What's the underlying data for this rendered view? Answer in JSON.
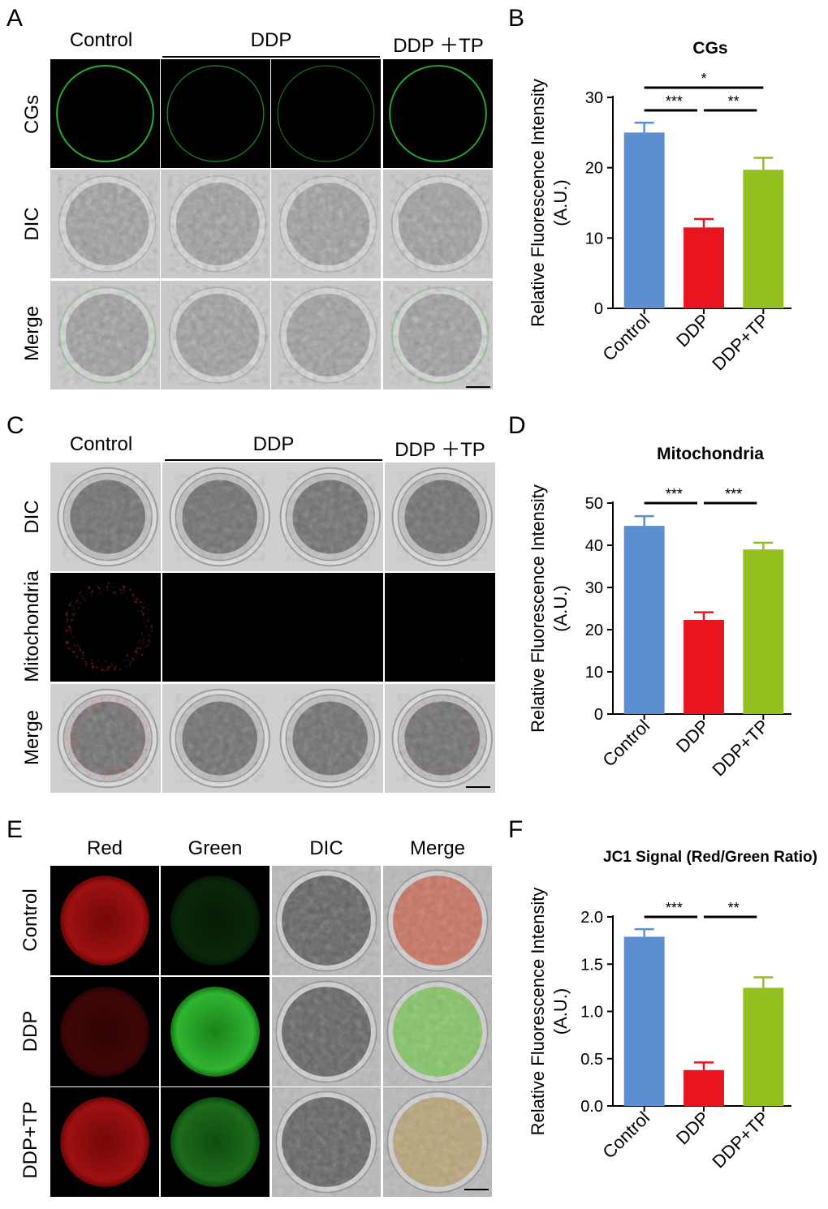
{
  "panels": {
    "A": {
      "letter": "A",
      "columns": [
        "Control",
        "DDP",
        "DDP ＋TP"
      ],
      "rows": [
        "CGs",
        "DIC",
        "Merge"
      ]
    },
    "C": {
      "letter": "C",
      "columns": [
        "Control",
        "DDP",
        "DDP ＋TP"
      ],
      "rows": [
        "DIC",
        "Mitochondria",
        "Merge"
      ]
    },
    "E": {
      "letter": "E",
      "columns": [
        "Red",
        "Green",
        "DIC",
        "Merge"
      ],
      "rows": [
        "Control",
        "DDP",
        "DDP+TP"
      ]
    },
    "B": {
      "letter": "B"
    },
    "D": {
      "letter": "D"
    },
    "F": {
      "letter": "F"
    }
  },
  "colors": {
    "control": "#5b8fcf",
    "ddp": "#e8141e",
    "ddp_tp": "#93c01f"
  },
  "chart_data": [
    {
      "type": "bar",
      "title": "CGs",
      "categories": [
        "Control",
        "DDP",
        "DDP+TP"
      ],
      "values": [
        25.0,
        11.5,
        19.7
      ],
      "errors": [
        1.4,
        1.2,
        1.7
      ],
      "ylabel": "Relative Fluorescence Intensity\n(A.U.)",
      "ylim": [
        0,
        30
      ],
      "yticks": [
        0,
        10,
        20,
        30
      ],
      "significance": [
        {
          "from": 0,
          "to": 1,
          "label": "***"
        },
        {
          "from": 1,
          "to": 2,
          "label": "**"
        },
        {
          "from": 0,
          "to": 2,
          "label": "*"
        }
      ]
    },
    {
      "type": "bar",
      "title": "Mitochondria",
      "categories": [
        "Control",
        "DDP",
        "DDP+TP"
      ],
      "values": [
        44.6,
        22.3,
        39.0
      ],
      "errors": [
        2.3,
        1.8,
        1.6
      ],
      "ylabel": "Relative Fluorescence Intensity\n(A.U.)",
      "ylim": [
        0,
        50
      ],
      "yticks": [
        0,
        10,
        20,
        30,
        40,
        50
      ],
      "significance": [
        {
          "from": 0,
          "to": 1,
          "label": "***"
        },
        {
          "from": 1,
          "to": 2,
          "label": "***"
        }
      ]
    },
    {
      "type": "bar",
      "title": "JC1 Signal (Red/Green Ratio)",
      "categories": [
        "Control",
        "DDP",
        "DDP+TP"
      ],
      "values": [
        1.79,
        0.38,
        1.25
      ],
      "errors": [
        0.08,
        0.08,
        0.11
      ],
      "ylabel": "Relative Fluorescence Intensity\n(A.U.)",
      "ylim": [
        0,
        2.0
      ],
      "yticks": [
        "0.0",
        "0.5",
        "1.0",
        "1.5",
        "2.0"
      ],
      "significance": [
        {
          "from": 0,
          "to": 1,
          "label": "***"
        },
        {
          "from": 1,
          "to": 2,
          "label": "**"
        }
      ]
    }
  ]
}
